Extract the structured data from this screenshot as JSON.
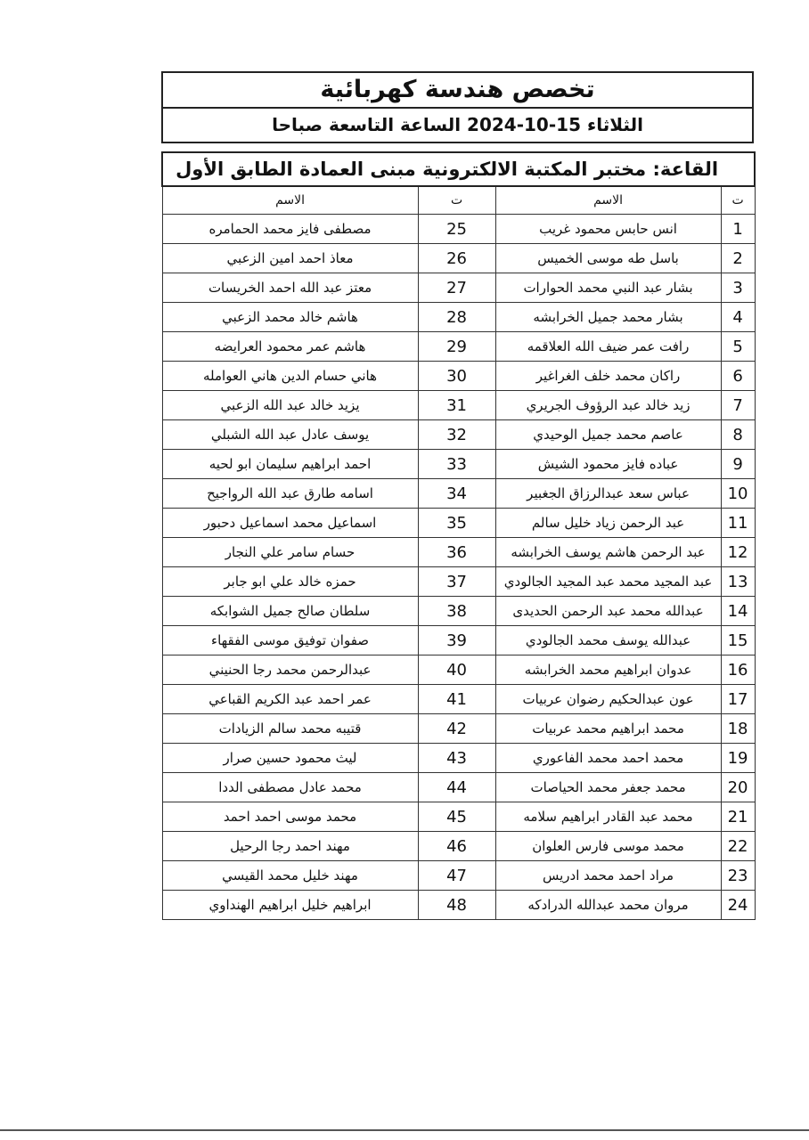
{
  "header": {
    "title": "تخصص هندسة كهربائية",
    "date_line": "الثلاثاء 15-10-2024 الساعة التاسعة صباحا"
  },
  "table": {
    "caption": "القاعة: مختبر المكتبة الالكترونية مبنى العمادة  الطابق الأول",
    "columns": {
      "num": "ت",
      "name": "الاسم"
    },
    "rows": [
      [
        "1",
        "انس حابس محمود غريب",
        "25",
        "مصطفى فايز محمد الحمامره"
      ],
      [
        "2",
        "باسل طه موسى الخميس",
        "26",
        "معاذ احمد امين الزعبي"
      ],
      [
        "3",
        "بشار عبد النبي محمد الحوارات",
        "27",
        "معتز عبد الله احمد الخريسات"
      ],
      [
        "4",
        "بشار محمد جميل الخرابشه",
        "28",
        "هاشم خالد محمد الزعبي"
      ],
      [
        "5",
        "رافت عمر ضيف الله العلاقمه",
        "29",
        "هاشم عمر محمود العرايضه"
      ],
      [
        "6",
        "راكان محمد خلف الغراغير",
        "30",
        "هاني حسام الدين هاني العوامله"
      ],
      [
        "7",
        "زيد خالد عبد الرؤوف الجريري",
        "31",
        "يزيد خالد عبد الله الزعبي"
      ],
      [
        "8",
        "عاصم محمد جميل الوحيدي",
        "32",
        "يوسف عادل عبد الله الشبلي"
      ],
      [
        "9",
        "عباده فايز محمود الشيش",
        "33",
        "احمد ابراهيم سليمان ابو لحيه"
      ],
      [
        "10",
        "عباس سعد عبدالرزاق الجغبير",
        "34",
        "اسامه طارق عبد الله الرواجيح"
      ],
      [
        "11",
        "عبد الرحمن زياد خليل سالم",
        "35",
        "اسماعيل محمد اسماعيل دحبور"
      ],
      [
        "12",
        "عبد الرحمن هاشم يوسف الخرابشه",
        "36",
        "حسام سامر علي النجار"
      ],
      [
        "13",
        "عبد المجيد محمد عبد المجيد الجالودي",
        "37",
        "حمزه خالد علي ابو جابر"
      ],
      [
        "14",
        "عبدالله محمد عبد الرحمن الحديدى",
        "38",
        "سلطان صالح جميل الشوابكه"
      ],
      [
        "15",
        "عبدالله يوسف محمد الجالودي",
        "39",
        "صفوان توفيق موسى الفقهاء"
      ],
      [
        "16",
        "عدوان ابراهيم محمد الخرابشه",
        "40",
        "عبدالرحمن محمد رجا الحنيني"
      ],
      [
        "17",
        "عون عبدالحكيم رضوان عربيات",
        "41",
        "عمر احمد عبد الكريم القباعي"
      ],
      [
        "18",
        "محمد ابراهيم محمد عربيات",
        "42",
        "قتيبه محمد سالم الزيادات"
      ],
      [
        "19",
        "محمد احمد محمد الفاعوري",
        "43",
        "ليث محمود حسين صرار"
      ],
      [
        "20",
        "محمد جعفر محمد الحياصات",
        "44",
        "محمد عادل مصطفى الددا"
      ],
      [
        "21",
        "محمد عبد القادر ابراهيم سلامه",
        "45",
        "محمد موسى احمد احمد"
      ],
      [
        "22",
        "محمد موسى فارس العلوان",
        "46",
        "مهند احمد رجا الرحيل"
      ],
      [
        "23",
        "مراد احمد محمد ادريس",
        "47",
        "مهند خليل محمد القيسي"
      ],
      [
        "24",
        "مروان محمد عبدالله الدرادكه",
        "48",
        "ابراهيم خليل ابراهيم الهنداوي"
      ]
    ]
  }
}
